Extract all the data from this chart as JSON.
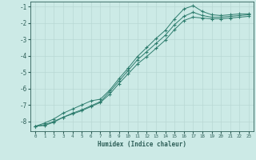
{
  "xlabel": "Humidex (Indice chaleur)",
  "x": [
    0,
    1,
    2,
    3,
    4,
    5,
    6,
    7,
    8,
    9,
    10,
    11,
    12,
    13,
    14,
    15,
    16,
    17,
    18,
    19,
    20,
    21,
    22,
    23
  ],
  "y_min": [
    -8.3,
    -8.2,
    -8.0,
    -7.75,
    -7.55,
    -7.35,
    -7.1,
    -6.85,
    -6.35,
    -5.7,
    -5.1,
    -4.5,
    -4.05,
    -3.55,
    -3.05,
    -2.4,
    -1.85,
    -1.65,
    -1.7,
    -1.75,
    -1.75,
    -1.7,
    -1.65,
    -1.6
  ],
  "y_mean": [
    -8.3,
    -8.25,
    -8.05,
    -7.75,
    -7.5,
    -7.3,
    -7.05,
    -6.8,
    -6.2,
    -5.55,
    -4.9,
    -4.25,
    -3.75,
    -3.25,
    -2.75,
    -2.1,
    -1.6,
    -1.35,
    -1.55,
    -1.65,
    -1.65,
    -1.6,
    -1.55,
    -1.5
  ],
  "y_max": [
    -8.3,
    -8.1,
    -7.85,
    -7.5,
    -7.25,
    -7.0,
    -6.75,
    -6.65,
    -6.1,
    -5.4,
    -4.75,
    -4.05,
    -3.5,
    -2.95,
    -2.45,
    -1.75,
    -1.15,
    -0.95,
    -1.3,
    -1.5,
    -1.55,
    -1.5,
    -1.45,
    -1.45
  ],
  "line_color": "#2e7d6e",
  "bg_color": "#cceae6",
  "grid_color": "#b8d8d4",
  "tick_color": "#2e5f58",
  "ylim": [
    -8.6,
    -0.7
  ],
  "xlim": [
    -0.5,
    23.5
  ],
  "yticks": [
    -8,
    -7,
    -6,
    -5,
    -4,
    -3,
    -2,
    -1
  ],
  "xticks": [
    0,
    1,
    2,
    3,
    4,
    5,
    6,
    7,
    8,
    9,
    10,
    11,
    12,
    13,
    14,
    15,
    16,
    17,
    18,
    19,
    20,
    21,
    22,
    23
  ]
}
